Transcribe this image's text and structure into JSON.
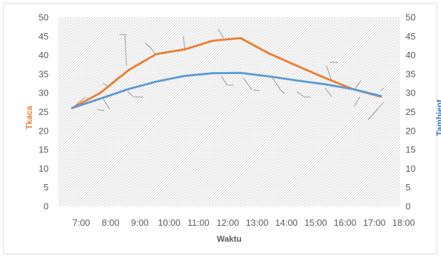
{
  "chart_data": {
    "type": "line",
    "xlabel": "Waktu",
    "ylabel_left": "Tkaca",
    "ylabel_right": "Tambient",
    "categories": [
      "7:00",
      "8:00",
      "9:00",
      "10:00",
      "11:00",
      "12:00",
      "13:00",
      "14:00",
      "15:00",
      "16:00",
      "17:00",
      "18:00"
    ],
    "y_ticks": [
      0,
      5,
      10,
      15,
      20,
      25,
      30,
      35,
      40,
      45,
      50
    ],
    "ylim": [
      0,
      50
    ],
    "grid": true,
    "series": [
      {
        "axis": "left",
        "color": "#ED7D31",
        "x": [
          0,
          1,
          2,
          3,
          4,
          5,
          6,
          7,
          8,
          9,
          10,
          11
        ],
        "values": [
          26,
          30,
          36,
          40.3,
          41.5,
          43.8,
          44.5,
          40.5,
          37.2,
          34,
          31,
          29
        ]
      },
      {
        "axis": "right",
        "color": "#5B9BD5",
        "x": [
          0,
          1,
          2,
          3,
          4,
          5,
          6,
          7,
          8,
          9,
          10,
          11
        ],
        "values": [
          26,
          28.5,
          31,
          33,
          34.5,
          35.2,
          35.3,
          34.4,
          33.3,
          32.3,
          31,
          29.2
        ]
      }
    ],
    "colors": {
      "left_title": "#ED7D31",
      "right_title": "#2E75B6",
      "tick": "#595959",
      "hatch": "#D9D9D9",
      "border": "#D9D9D9",
      "artifact": "#A6A6A6"
    }
  }
}
